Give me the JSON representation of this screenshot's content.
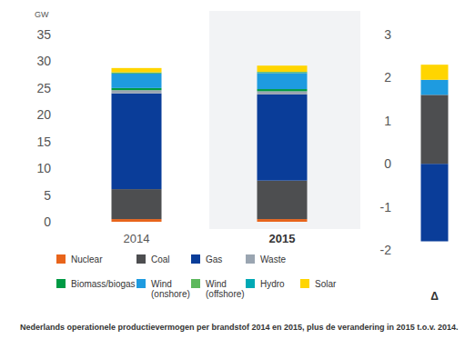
{
  "chart_data": [
    {
      "type": "bar",
      "stacked": true,
      "title": "Nederlands operationele productievermogen per brandstof 2014 en 2015, plus de verandering in 2015 t.o.v. 2014.",
      "y_label": "GW",
      "categories": [
        "2014",
        "2015"
      ],
      "ylim": [
        0,
        35
      ],
      "yticks": [
        0,
        5,
        10,
        15,
        20,
        25,
        30,
        35
      ],
      "legend": "bottom",
      "series": [
        {
          "name": "Nuclear",
          "color": "#e8641b",
          "values": [
            0.5,
            0.5
          ]
        },
        {
          "name": "Coal",
          "color": "#4d4e50",
          "values": [
            5.6,
            7.2
          ]
        },
        {
          "name": "Gas",
          "color": "#0a3d99",
          "values": [
            17.9,
            16.1
          ]
        },
        {
          "name": "Waste",
          "color": "#9aa5b1",
          "values": [
            0.6,
            0.6
          ]
        },
        {
          "name": "Biomass/biogas",
          "color": "#009a44",
          "values": [
            0.4,
            0.4
          ]
        },
        {
          "name": "Wind (onshore)",
          "color": "#1e9be0",
          "values": [
            2.7,
            3.0
          ]
        },
        {
          "name": "Wind (offshore)",
          "color": "#5cb85c",
          "values": [
            0.2,
            0.2
          ]
        },
        {
          "name": "Hydro",
          "color": "#00a9b5",
          "values": [
            0.04,
            0.04
          ]
        },
        {
          "name": "Solar",
          "color": "#ffd500",
          "values": [
            0.8,
            1.15
          ]
        }
      ]
    },
    {
      "type": "bar",
      "stacked": true,
      "categories": [
        "Δ"
      ],
      "ylim": [
        -2,
        3
      ],
      "yticks": [
        -2,
        -1,
        0,
        1,
        2,
        3
      ],
      "series": [
        {
          "color": "#0a3d99",
          "values": [
            -1.8
          ]
        },
        {
          "color": "#4d4e50",
          "values": [
            1.6
          ]
        },
        {
          "color": "#1e9be0",
          "values": [
            0.35
          ]
        },
        {
          "color": "#ffd500",
          "values": [
            0.35
          ]
        }
      ]
    }
  ]
}
